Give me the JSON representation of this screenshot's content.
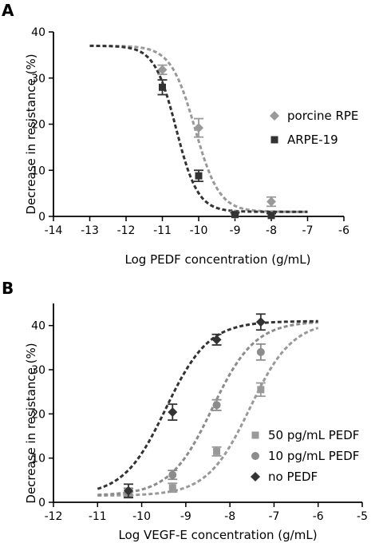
{
  "colors": {
    "light_gray": "#999999",
    "medium_gray": "#8c8c8c",
    "dark_gray": "#333333",
    "axis": "#000000"
  },
  "chart_data": [
    {
      "panel_label": "A",
      "type": "scatter",
      "xlabel": "Log PEDF concentration (g/mL)",
      "ylabel": "Decrease in resistance (%)",
      "xlim": [
        -14,
        -6
      ],
      "ylim": [
        0,
        40
      ],
      "x_ticks": [
        "-14",
        "-13",
        "-12",
        "-11",
        "-10",
        "-9",
        "-8",
        "-7",
        "-6"
      ],
      "y_ticks": [
        "0",
        "10",
        "20",
        "30",
        "40"
      ],
      "legend_position": "right",
      "series": [
        {
          "name": "porcine RPE",
          "color": "#999999",
          "marker": "diamond",
          "points": [
            {
              "x": -11,
              "y": 31.8,
              "err": 1.0
            },
            {
              "x": -10,
              "y": 19.2,
              "err": 2.0
            },
            {
              "x": -9,
              "y": 0.5,
              "err": 0.6
            },
            {
              "x": -8,
              "y": 3.2,
              "err": 1.0
            }
          ],
          "fit": {
            "top": 37,
            "bottom": 1,
            "logEC50": -10.1,
            "hill": 1.3,
            "x_range": [
              -13,
              -7
            ]
          }
        },
        {
          "name": "ARPE-19",
          "color": "#333333",
          "marker": "square",
          "points": [
            {
              "x": -11,
              "y": 28.0,
              "err": 1.6
            },
            {
              "x": -10,
              "y": 8.8,
              "err": 1.2
            },
            {
              "x": -9,
              "y": 0.4,
              "err": 0.4
            },
            {
              "x": -8,
              "y": 0.2,
              "err": 0.4
            }
          ],
          "fit": {
            "top": 37,
            "bottom": 1,
            "logEC50": -10.62,
            "hill": 1.45,
            "x_range": [
              -13,
              -7
            ]
          }
        }
      ]
    },
    {
      "panel_label": "B",
      "type": "scatter",
      "xlabel": "Log VEGF-E concentration (g/mL)",
      "ylabel": "Decrease in resistance (%)",
      "xlim": [
        -12,
        -5
      ],
      "ylim": [
        0,
        45
      ],
      "x_ticks": [
        "-12",
        "-11",
        "-10",
        "-9",
        "-8",
        "-7",
        "-6",
        "-5"
      ],
      "y_ticks": [
        "0",
        "10",
        "20",
        "30",
        "40"
      ],
      "legend_position": "bottom-right",
      "series": [
        {
          "name": "50 pg/mL PEDF",
          "color": "#999999",
          "marker": "square",
          "points": [
            {
              "x": -10.3,
              "y": 2.0,
              "err": 1.0
            },
            {
              "x": -9.3,
              "y": 3.3,
              "err": 1.0
            },
            {
              "x": -8.3,
              "y": 11.5,
              "err": 1.0
            },
            {
              "x": -7.3,
              "y": 25.5,
              "err": 1.5
            }
          ],
          "fit": {
            "top": 41,
            "bottom": 1.5,
            "logEC50": -7.55,
            "hill": 0.9,
            "x_range": [
              -11,
              -6
            ]
          }
        },
        {
          "name": "10 pg/mL PEDF",
          "color": "#8c8c8c",
          "marker": "circle",
          "points": [
            {
              "x": -10.3,
              "y": 2.2,
              "err": 1.0
            },
            {
              "x": -9.3,
              "y": 6.2,
              "err": 1.0
            },
            {
              "x": -8.3,
              "y": 22.0,
              "err": 1.2
            },
            {
              "x": -7.3,
              "y": 34.0,
              "err": 1.8
            }
          ],
          "fit": {
            "top": 41,
            "bottom": 1.5,
            "logEC50": -8.4,
            "hill": 0.9,
            "x_range": [
              -11,
              -6
            ]
          }
        },
        {
          "name": "no PEDF",
          "color": "#333333",
          "marker": "diamond",
          "points": [
            {
              "x": -10.3,
              "y": 2.6,
              "err": 1.5
            },
            {
              "x": -9.3,
              "y": 20.4,
              "err": 1.8
            },
            {
              "x": -8.3,
              "y": 36.8,
              "err": 1.2
            },
            {
              "x": -7.3,
              "y": 40.8,
              "err": 1.8
            }
          ],
          "fit": {
            "top": 41,
            "bottom": 1.5,
            "logEC50": -9.45,
            "hill": 0.9,
            "x_range": [
              -11,
              -6
            ]
          }
        }
      ]
    }
  ]
}
